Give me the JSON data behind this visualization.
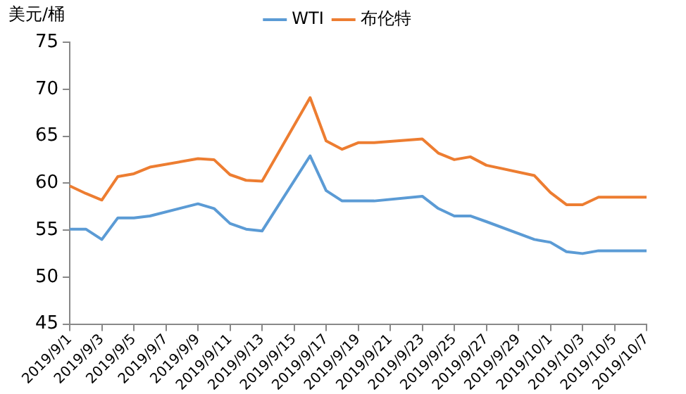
{
  "chart_data": {
    "type": "line",
    "ylabel": "美元/桶",
    "categories": [
      "2019/9/1",
      null,
      "2019/9/3",
      null,
      "2019/9/5",
      null,
      "2019/9/7",
      null,
      "2019/9/9",
      null,
      "2019/9/11",
      null,
      "2019/9/13",
      null,
      "2019/9/15",
      null,
      "2019/9/17",
      null,
      "2019/9/19",
      null,
      "2019/9/21",
      null,
      "2019/9/23",
      null,
      "2019/9/25",
      null,
      "2019/9/27",
      null,
      "2019/9/29",
      null,
      "2019/10/1",
      null,
      "2019/10/3",
      null,
      "2019/10/5",
      null,
      "2019/10/7"
    ],
    "series": [
      {
        "name": "WTI",
        "color": "#5b9bd5",
        "values": [
          55.1,
          55.1,
          54.0,
          56.3,
          56.3,
          56.5,
          null,
          null,
          57.8,
          57.3,
          55.7,
          55.1,
          54.9,
          null,
          null,
          62.9,
          59.2,
          58.1,
          58.1,
          58.1,
          null,
          null,
          58.6,
          57.3,
          56.5,
          56.5,
          55.9,
          null,
          null,
          54.0,
          53.7,
          52.7,
          52.5,
          52.8,
          null,
          null,
          52.8
        ]
      },
      {
        "name": "布伦特",
        "color": "#ed7d31",
        "values": [
          59.7,
          58.9,
          58.2,
          60.7,
          61.0,
          61.7,
          null,
          null,
          62.6,
          62.5,
          60.9,
          60.3,
          60.2,
          null,
          null,
          69.1,
          64.5,
          63.6,
          64.3,
          64.3,
          null,
          null,
          64.7,
          63.2,
          62.5,
          62.8,
          61.9,
          null,
          null,
          60.8,
          59.0,
          57.7,
          57.7,
          58.5,
          null,
          null,
          58.5
        ]
      }
    ],
    "ylim": [
      45,
      75
    ],
    "yticks": [
      45,
      50,
      55,
      60,
      65,
      70,
      75
    ],
    "grid": false,
    "legend": "top",
    "marker": "none",
    "line_style": "solid"
  }
}
